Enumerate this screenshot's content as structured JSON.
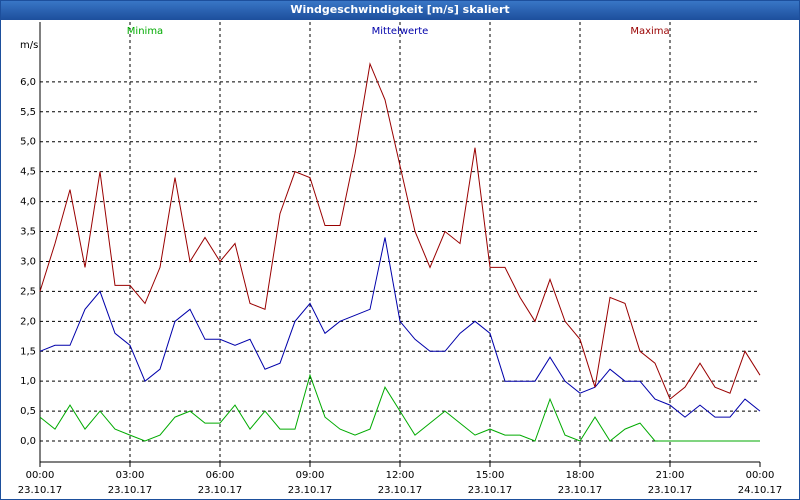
{
  "chart_data": {
    "type": "line",
    "title": "Windgeschwindigkeit [m/s] skaliert",
    "y_unit": "m/s",
    "x": [
      0,
      0.5,
      1,
      1.5,
      2,
      2.5,
      3,
      3.5,
      4,
      4.5,
      5,
      5.5,
      6,
      6.5,
      7,
      7.5,
      8,
      8.5,
      9,
      9.5,
      10,
      10.5,
      11,
      11.5,
      12,
      12.5,
      13,
      13.5,
      14,
      14.5,
      15,
      15.5,
      16,
      16.5,
      17,
      17.5,
      18,
      18.5,
      19,
      19.5,
      20,
      20.5,
      21,
      21.5,
      22,
      22.5,
      23,
      23.5,
      24
    ],
    "series": [
      {
        "name": "Minima",
        "color": "#00aa00",
        "values": [
          0.4,
          0.2,
          0.6,
          0.2,
          0.5,
          0.2,
          0.1,
          0.0,
          0.1,
          0.4,
          0.5,
          0.3,
          0.3,
          0.6,
          0.2,
          0.5,
          0.2,
          0.2,
          1.1,
          0.4,
          0.2,
          0.1,
          0.2,
          0.9,
          0.5,
          0.1,
          0.3,
          0.5,
          0.3,
          0.1,
          0.2,
          0.1,
          0.1,
          0.0,
          0.7,
          0.1,
          0.0,
          0.4,
          0.0,
          0.2,
          0.3,
          0.0,
          0.0,
          0.0,
          0.0,
          0.0,
          0.0,
          0.0,
          0.0
        ]
      },
      {
        "name": "Mittelwerte",
        "color": "#0000aa",
        "values": [
          1.5,
          1.6,
          1.6,
          2.2,
          2.5,
          1.8,
          1.6,
          1.0,
          1.2,
          2.0,
          2.2,
          1.7,
          1.7,
          1.6,
          1.7,
          1.2,
          1.3,
          2.0,
          2.3,
          1.8,
          2.0,
          2.1,
          2.2,
          3.4,
          2.0,
          1.7,
          1.5,
          1.5,
          1.8,
          2.0,
          1.8,
          1.0,
          1.0,
          1.0,
          1.4,
          1.0,
          0.8,
          0.9,
          1.2,
          1.0,
          1.0,
          0.7,
          0.6,
          0.4,
          0.6,
          0.4,
          0.4,
          0.7,
          0.5
        ]
      },
      {
        "name": "Maxima",
        "color": "#990000",
        "values": [
          2.5,
          3.3,
          4.2,
          2.9,
          4.5,
          2.6,
          2.6,
          2.3,
          2.9,
          4.4,
          3.0,
          3.4,
          3.0,
          3.3,
          2.3,
          2.2,
          3.8,
          4.5,
          4.4,
          3.6,
          3.6,
          4.8,
          6.3,
          5.7,
          4.6,
          3.5,
          2.9,
          3.5,
          3.3,
          4.9,
          2.9,
          2.9,
          2.4,
          2.0,
          2.7,
          2.0,
          1.7,
          0.9,
          2.4,
          2.3,
          1.5,
          1.3,
          0.7,
          0.9,
          1.3,
          0.9,
          0.8,
          1.5,
          1.1
        ]
      }
    ],
    "xlim": [
      0,
      24
    ],
    "xticks": [
      {
        "value": 0,
        "label": "00:00",
        "date": "23.10.17"
      },
      {
        "value": 3,
        "label": "03:00",
        "date": "23.10.17"
      },
      {
        "value": 6,
        "label": "06:00",
        "date": "23.10.17"
      },
      {
        "value": 9,
        "label": "09:00",
        "date": "23.10.17"
      },
      {
        "value": 12,
        "label": "12:00",
        "date": "23.10.17"
      },
      {
        "value": 15,
        "label": "15:00",
        "date": "23.10.17"
      },
      {
        "value": 18,
        "label": "18:00",
        "date": "23.10.17"
      },
      {
        "value": 21,
        "label": "21:00",
        "date": "23.10.17"
      },
      {
        "value": 24,
        "label": "00:00",
        "date": "24.10.17"
      }
    ],
    "ylim": [
      -0.35,
      7.0
    ],
    "yticks": [
      {
        "value": 0,
        "label": "0,0"
      },
      {
        "value": 0.5,
        "label": "0,5"
      },
      {
        "value": 1,
        "label": "1,0"
      },
      {
        "value": 1.5,
        "label": "1,5"
      },
      {
        "value": 2,
        "label": "2,0"
      },
      {
        "value": 2.5,
        "label": "2,5"
      },
      {
        "value": 3,
        "label": "3,0"
      },
      {
        "value": 3.5,
        "label": "3,5"
      },
      {
        "value": 4,
        "label": "4,0"
      },
      {
        "value": 4.5,
        "label": "4,5"
      },
      {
        "value": 5,
        "label": "5,0"
      },
      {
        "value": 5.5,
        "label": "5,5"
      },
      {
        "value": 6,
        "label": "6,0"
      }
    ],
    "grid": true
  }
}
